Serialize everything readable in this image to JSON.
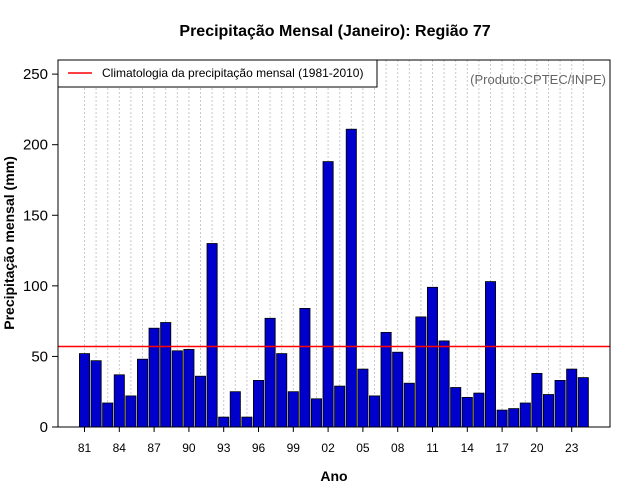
{
  "chart_data": {
    "type": "bar",
    "title": "Precipitação Mensal (Janeiro): Região 77",
    "xlabel": "Ano",
    "ylabel": "Precipitação mensal (mm)",
    "ylim": [
      0,
      250
    ],
    "yticks": [
      "0",
      "50",
      "100",
      "150",
      "200",
      "250"
    ],
    "xtick_labels": [
      "81",
      "84",
      "87",
      "90",
      "93",
      "96",
      "99",
      "02",
      "05",
      "08",
      "11",
      "14",
      "17",
      "20",
      "23"
    ],
    "categories": [
      "1981",
      "1982",
      "1983",
      "1984",
      "1985",
      "1986",
      "1987",
      "1988",
      "1989",
      "1990",
      "1991",
      "1992",
      "1993",
      "1994",
      "1995",
      "1996",
      "1997",
      "1998",
      "1999",
      "2000",
      "2001",
      "2002",
      "2003",
      "2004",
      "2005",
      "2006",
      "2007",
      "2008",
      "2009",
      "2010",
      "2011",
      "2012",
      "2013",
      "2014",
      "2015",
      "2016",
      "2017",
      "2018",
      "2019",
      "2020",
      "2021",
      "2022",
      "2023",
      "2024"
    ],
    "values": [
      52,
      47,
      17,
      37,
      22,
      48,
      70,
      74,
      54,
      55,
      36,
      130,
      7,
      25,
      7,
      33,
      77,
      52,
      25,
      84,
      20,
      188,
      29,
      211,
      41,
      22,
      67,
      53,
      31,
      78,
      99,
      61,
      28,
      21,
      24,
      103,
      12,
      13,
      17,
      38,
      23,
      33,
      41,
      35
    ],
    "bar_color": "#0000cc",
    "reference_line": {
      "label": "Climatologia da precipitação mensal (1981-2010)",
      "value": 57,
      "color": "#ff0000"
    },
    "legend_position": "top-left",
    "grid": "vertical dotted",
    "credit": "(Produto:CPTEC/INPE)"
  }
}
